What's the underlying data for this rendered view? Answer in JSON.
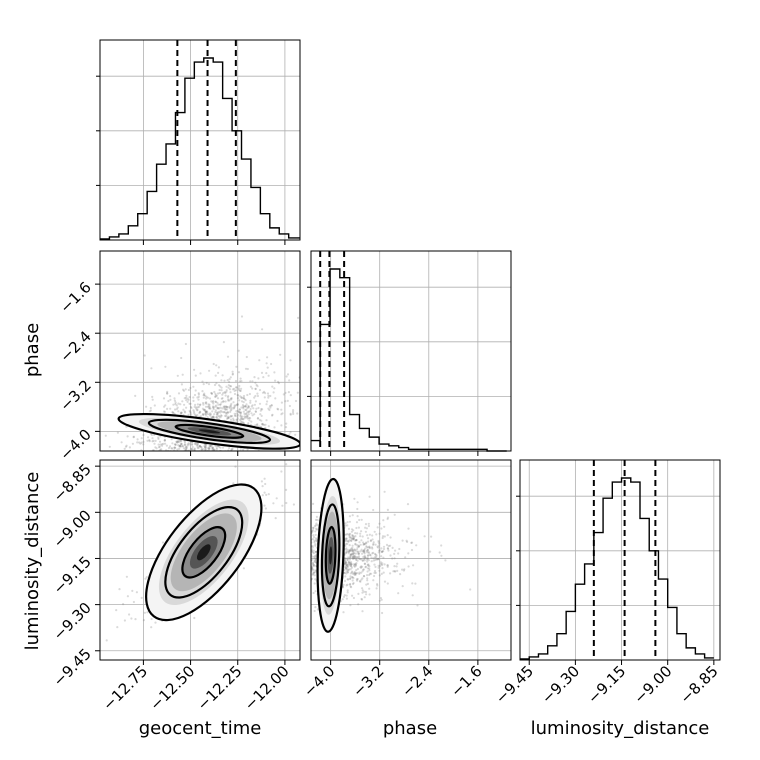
{
  "chart_data": {
    "type": "corner",
    "parameters": [
      "geocent_time",
      "phase",
      "luminosity_distance"
    ],
    "grid": true,
    "quantiles": [
      0.16,
      0.5,
      0.84
    ],
    "ranges": {
      "geocent_time": [
        -12.98,
        -11.92
      ],
      "phase": [
        -4.32,
        -1.06
      ],
      "luminosity_distance": [
        -9.48,
        -8.83
      ]
    },
    "ticks": {
      "geocent_time": {
        "values": [
          -12.75,
          -12.5,
          -12.25,
          -12.0
        ],
        "labels": [
          "−12.75",
          "−12.50",
          "−12.25",
          "−12.00"
        ]
      },
      "phase": {
        "values": [
          -4.0,
          -3.2,
          -2.4,
          -1.6
        ],
        "labels": [
          "−4.0",
          "−3.2",
          "−2.4",
          "−1.6"
        ]
      },
      "luminosity_distance": {
        "values": [
          -9.45,
          -9.3,
          -9.15,
          -9.0,
          -8.85
        ],
        "labels": [
          "−9.45",
          "−9.30",
          "−9.15",
          "−9.00",
          "−8.85"
        ]
      }
    },
    "marginals": {
      "geocent_time": {
        "bin_edges": [
          -12.98,
          -12.93,
          -12.88,
          -12.83,
          -12.78,
          -12.73,
          -12.68,
          -12.63,
          -12.58,
          -12.53,
          -12.48,
          -12.43,
          -12.38,
          -12.33,
          -12.28,
          -12.23,
          -12.18,
          -12.13,
          -12.08,
          -12.03,
          -11.98,
          -11.92
        ],
        "counts": [
          1,
          3,
          6,
          14,
          26,
          48,
          75,
          95,
          126,
          160,
          176,
          180,
          176,
          140,
          108,
          80,
          52,
          26,
          12,
          6,
          2
        ],
        "quantile_values": [
          -12.57,
          -12.41,
          -12.26
        ]
      },
      "phase": {
        "bin_edges": [
          -4.32,
          -4.17,
          -4.01,
          -3.85,
          -3.69,
          -3.53,
          -3.37,
          -3.21,
          -3.05,
          -2.89,
          -2.73,
          -2.57,
          -2.41,
          -2.25,
          -2.09,
          -1.93,
          -1.77,
          -1.61,
          -1.45,
          -1.29,
          -1.13
        ],
        "counts": [
          6,
          73,
          105,
          100,
          21,
          13,
          8,
          4,
          3,
          2,
          1,
          1,
          1,
          1,
          1,
          1,
          1,
          1,
          0,
          0
        ],
        "quantile_values": [
          -4.17,
          -4.02,
          -3.78
        ]
      },
      "luminosity_distance": {
        "bin_edges": [
          -9.48,
          -9.45,
          -9.42,
          -9.39,
          -9.36,
          -9.33,
          -9.3,
          -9.27,
          -9.24,
          -9.21,
          -9.18,
          -9.15,
          -9.12,
          -9.09,
          -9.06,
          -9.03,
          -9.0,
          -8.97,
          -8.94,
          -8.91,
          -8.88,
          -8.85
        ],
        "counts": [
          1,
          3,
          6,
          14,
          26,
          48,
          75,
          95,
          126,
          160,
          176,
          180,
          176,
          140,
          108,
          80,
          52,
          26,
          12,
          6,
          2
        ],
        "quantile_values": [
          -9.24,
          -9.14,
          -9.04
        ]
      }
    },
    "joint": [
      {
        "x": "geocent_time",
        "y": "phase",
        "mean": [
          -12.4,
          -4.0
        ],
        "sd": [
          0.18,
          0.17
        ],
        "rho": 0.45,
        "tilt_deg": -8,
        "scatter_n": 1700,
        "spread_x": 1.25,
        "spread_y": 3.4
      },
      {
        "x": "geocent_time",
        "y": "luminosity_distance",
        "mean": [
          -12.43,
          -9.13
        ],
        "sd": [
          0.13,
          0.085
        ],
        "rho": 0.8,
        "tilt_deg": 52,
        "scatter_n": 1500,
        "spread_x": 1.15,
        "spread_y": 1.15
      },
      {
        "x": "phase",
        "y": "luminosity_distance",
        "mean": [
          -4.0,
          -9.14
        ],
        "sd": [
          0.14,
          0.08
        ],
        "rho": 0.05,
        "tilt_deg": 88,
        "scatter_n": 1500,
        "spread_x": 4.4,
        "spread_y": 1.0
      }
    ]
  }
}
